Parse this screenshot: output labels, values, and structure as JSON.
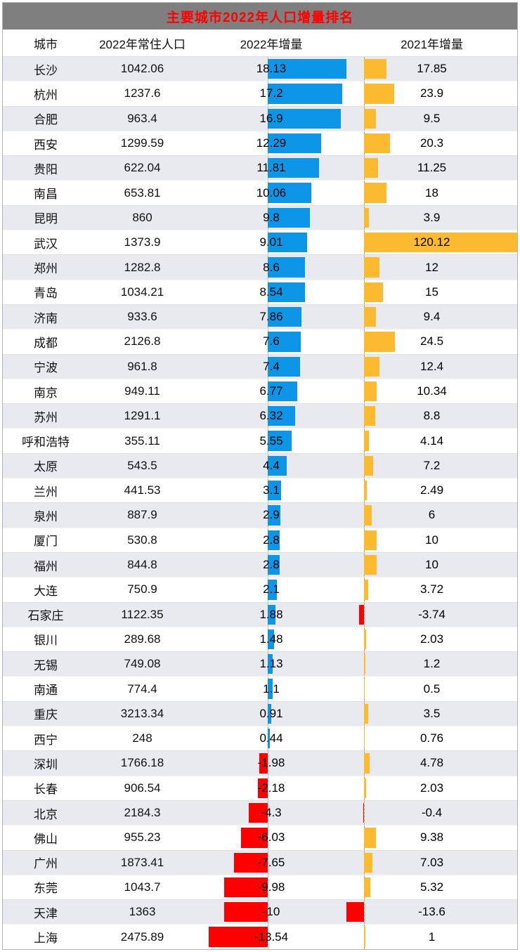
{
  "title": "主要城市2022年人口增量排名",
  "header": {
    "city": "城市",
    "pop": "2022年常住人口",
    "inc2022": "2022年增量",
    "inc2021": "2021年增量"
  },
  "colors": {
    "title_bg": "#7f7f7f",
    "title_text": "#ff0000",
    "stripe": "#e9e9f0",
    "border": "#b3b3b3",
    "bar_blue": "#0d96e8",
    "bar_orange": "#fbba30",
    "bar_red": "#ff0000",
    "axis_2022": "#a7b9c9",
    "axis_2021": "#d9a43c"
  },
  "chart_data": {
    "type": "table",
    "title": "主要城市2022年人口增量排名",
    "columns": [
      "城市",
      "2022年常住人口",
      "2022年增量",
      "2021年增量"
    ],
    "bar_columns": {
      "inc2022": {
        "positive_color": "blue",
        "negative_color": "red",
        "axis": "auto"
      },
      "inc2021": {
        "positive_color": "orange",
        "negative_color": "red",
        "axis": "auto"
      }
    },
    "rows": [
      {
        "city": "长沙",
        "pop": "1042.06",
        "inc2022": "18.13",
        "inc2021": "17.85"
      },
      {
        "city": "杭州",
        "pop": "1237.6",
        "inc2022": "17.2",
        "inc2021": "23.9"
      },
      {
        "city": "合肥",
        "pop": "963.4",
        "inc2022": "16.9",
        "inc2021": "9.5"
      },
      {
        "city": "西安",
        "pop": "1299.59",
        "inc2022": "12.29",
        "inc2021": "20.3"
      },
      {
        "city": "贵阳",
        "pop": "622.04",
        "inc2022": "11.81",
        "inc2021": "11.25"
      },
      {
        "city": "南昌",
        "pop": "653.81",
        "inc2022": "10.06",
        "inc2021": "18"
      },
      {
        "city": "昆明",
        "pop": "860",
        "inc2022": "9.8",
        "inc2021": "3.9"
      },
      {
        "city": "武汉",
        "pop": "1373.9",
        "inc2022": "9.01",
        "inc2021": "120.12"
      },
      {
        "city": "郑州",
        "pop": "1282.8",
        "inc2022": "8.6",
        "inc2021": "12"
      },
      {
        "city": "青岛",
        "pop": "1034.21",
        "inc2022": "8.54",
        "inc2021": "15"
      },
      {
        "city": "济南",
        "pop": "933.6",
        "inc2022": "7.86",
        "inc2021": "9.4"
      },
      {
        "city": "成都",
        "pop": "2126.8",
        "inc2022": "7.6",
        "inc2021": "24.5"
      },
      {
        "city": "宁波",
        "pop": "961.8",
        "inc2022": "7.4",
        "inc2021": "12.4"
      },
      {
        "city": "南京",
        "pop": "949.11",
        "inc2022": "6.77",
        "inc2021": "10.34"
      },
      {
        "city": "苏州",
        "pop": "1291.1",
        "inc2022": "6.32",
        "inc2021": "8.8"
      },
      {
        "city": "呼和浩特",
        "pop": "355.11",
        "inc2022": "5.55",
        "inc2021": "4.14"
      },
      {
        "city": "太原",
        "pop": "543.5",
        "inc2022": "4.4",
        "inc2021": "7.2"
      },
      {
        "city": "兰州",
        "pop": "441.53",
        "inc2022": "3.1",
        "inc2021": "2.49"
      },
      {
        "city": "泉州",
        "pop": "887.9",
        "inc2022": "2.9",
        "inc2021": "6"
      },
      {
        "city": "厦门",
        "pop": "530.8",
        "inc2022": "2.8",
        "inc2021": "10"
      },
      {
        "city": "福州",
        "pop": "844.8",
        "inc2022": "2.8",
        "inc2021": "10"
      },
      {
        "city": "大连",
        "pop": "750.9",
        "inc2022": "2.1",
        "inc2021": "3.72"
      },
      {
        "city": "石家庄",
        "pop": "1122.35",
        "inc2022": "1.88",
        "inc2021": "-3.74"
      },
      {
        "city": "银川",
        "pop": "289.68",
        "inc2022": "1.48",
        "inc2021": "2.03"
      },
      {
        "city": "无锡",
        "pop": "749.08",
        "inc2022": "1.13",
        "inc2021": "1.2"
      },
      {
        "city": "南通",
        "pop": "774.4",
        "inc2022": "1.1",
        "inc2021": "0.5"
      },
      {
        "city": "重庆",
        "pop": "3213.34",
        "inc2022": "0.91",
        "inc2021": "3.5"
      },
      {
        "city": "西宁",
        "pop": "248",
        "inc2022": "0.44",
        "inc2021": "0.76"
      },
      {
        "city": "深圳",
        "pop": "1766.18",
        "inc2022": "-1.98",
        "inc2021": "4.78"
      },
      {
        "city": "长春",
        "pop": "906.54",
        "inc2022": "-2.18",
        "inc2021": "2.03"
      },
      {
        "city": "北京",
        "pop": "2184.3",
        "inc2022": "-4.3",
        "inc2021": "-0.4"
      },
      {
        "city": "佛山",
        "pop": "955.23",
        "inc2022": "-6.03",
        "inc2021": "9.38"
      },
      {
        "city": "广州",
        "pop": "1873.41",
        "inc2022": "-7.65",
        "inc2021": "7.03"
      },
      {
        "city": "东莞",
        "pop": "1043.7",
        "inc2022": "-9.98",
        "inc2021": "5.32"
      },
      {
        "city": "天津",
        "pop": "1363",
        "inc2022": "-10",
        "inc2021": "-13.6"
      },
      {
        "city": "上海",
        "pop": "2475.89",
        "inc2022": "-13.54",
        "inc2021": "1"
      }
    ]
  }
}
